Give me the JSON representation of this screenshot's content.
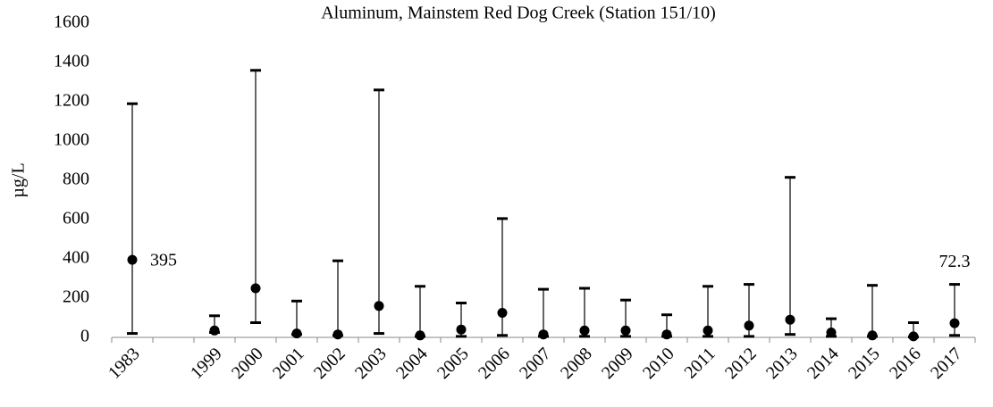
{
  "chart_data": {
    "type": "range",
    "title": "Aluminum, Mainstem Red Dog Creek (Station 151/10)",
    "y_label": "µg/L",
    "categories": [
      "1983",
      null,
      "1999",
      "2000",
      "2001",
      "2002",
      "2003",
      "2004",
      "2005",
      "2006",
      "2007",
      "2008",
      "2009",
      "2010",
      "2011",
      "2012",
      "2013",
      "2014",
      "2015",
      "2016",
      "2017"
    ],
    "maxima": [
      1190,
      null,
      110,
      1360,
      185,
      390,
      1260,
      260,
      175,
      605,
      245,
      250,
      190,
      115,
      260,
      270,
      815,
      95,
      265,
      75,
      270
    ],
    "medians": [
      395,
      null,
      35,
      250,
      20,
      15,
      160,
      10,
      40,
      125,
      15,
      35,
      35,
      15,
      35,
      60,
      90,
      25,
      10,
      5,
      72.3
    ],
    "minima": [
      20,
      null,
      25,
      75,
      15,
      10,
      20,
      5,
      5,
      10,
      5,
      5,
      5,
      5,
      5,
      5,
      15,
      5,
      5,
      2,
      10
    ],
    "value_labels": [
      "395",
      null,
      null,
      null,
      null,
      null,
      null,
      null,
      null,
      null,
      null,
      null,
      null,
      null,
      null,
      null,
      null,
      null,
      null,
      null,
      "72.3"
    ],
    "color": "#000000",
    "ylim": [
      0,
      1600
    ],
    "yticks": [
      0,
      200,
      400,
      600,
      800,
      1000,
      1200,
      1400,
      1600
    ]
  }
}
